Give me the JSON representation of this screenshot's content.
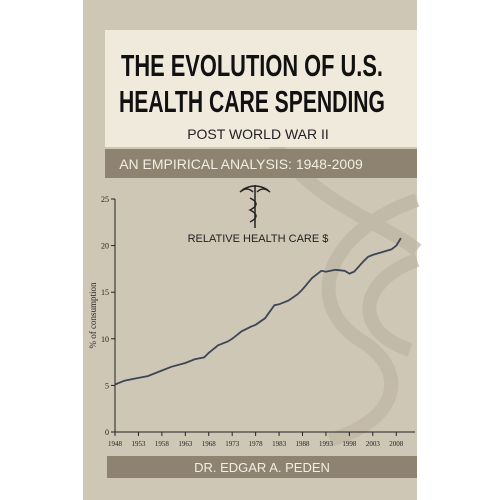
{
  "cover": {
    "title_line1": "THE EVOLUTION OF U.S.",
    "title_line2": "HEALTH CARE SPENDING",
    "subtitle": "POST WORLD WAR II",
    "band": "AN EMPIRICAL ANALYSIS: 1948-2009",
    "author": "DR. EDGAR A. PEDEN"
  },
  "chart_data": {
    "type": "line",
    "title": "RELATIVE HEALTH CARE $",
    "y_label": "% of consumption",
    "x": [
      1948,
      1950,
      1953,
      1955,
      1958,
      1960,
      1963,
      1965,
      1967,
      1968,
      1970,
      1972,
      1973,
      1975,
      1977,
      1978,
      1980,
      1982,
      1983,
      1985,
      1987,
      1988,
      1990,
      1992,
      1993,
      1995,
      1997,
      1998,
      1999,
      2001,
      2002,
      2003,
      2005,
      2007,
      2008,
      2009
    ],
    "values": [
      5.1,
      5.5,
      5.8,
      6.0,
      6.6,
      7.0,
      7.4,
      7.8,
      8.0,
      8.5,
      9.3,
      9.7,
      10.0,
      10.8,
      11.3,
      11.5,
      12.2,
      13.6,
      13.7,
      14.1,
      14.8,
      15.3,
      16.5,
      17.3,
      17.2,
      17.4,
      17.3,
      17.0,
      17.2,
      18.3,
      18.8,
      19.0,
      19.3,
      19.6,
      20.0,
      20.8
    ],
    "color": "#3b4656",
    "xlim": [
      1948,
      2012
    ],
    "xticks": [
      1948,
      1953,
      1958,
      1963,
      1968,
      1973,
      1978,
      1983,
      1988,
      1993,
      1998,
      2003,
      2008
    ],
    "ylim": [
      0,
      25
    ],
    "yticks": [
      0,
      5,
      10,
      15,
      20,
      25
    ]
  }
}
